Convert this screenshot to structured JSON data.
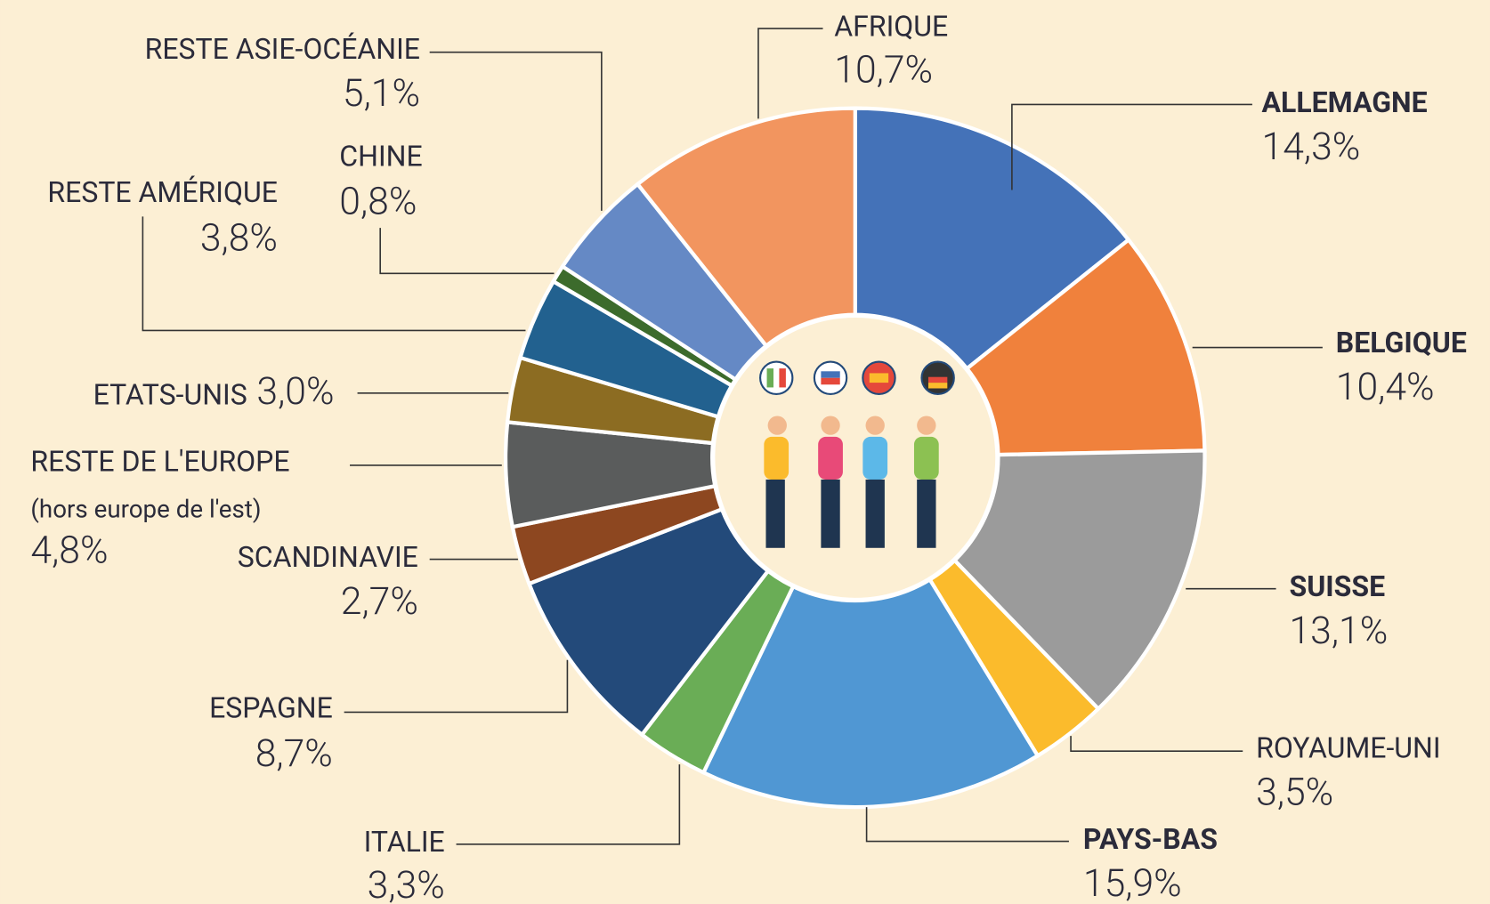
{
  "chart_data": {
    "type": "donut",
    "categories": [
      "ALLEMAGNE",
      "BELGIQUE",
      "SUISSE",
      "ROYAUME-UNI",
      "PAYS-BAS",
      "ITALIE",
      "ESPAGNE",
      "SCANDINAVIE",
      "RESTE DE L'EUROPE",
      "ETATS-UNIS",
      "RESTE AMÉRIQUE",
      "CHINE",
      "RESTE ASIE-OCÉANIE",
      "AFRIQUE"
    ],
    "values": [
      14.3,
      10.4,
      13.1,
      3.5,
      15.9,
      3.3,
      8.7,
      2.7,
      4.8,
      3.0,
      3.8,
      0.8,
      5.1,
      10.7
    ],
    "value_labels": [
      "14,3%",
      "10,4%",
      "13,1%",
      "3,5%",
      "15,9%",
      "3,3%",
      "8,7%",
      "2,7%",
      "4,8%",
      "3,0%",
      "3,8%",
      "0,8%",
      "5,1%",
      "10,7%"
    ],
    "colors": [
      "#4472b8",
      "#f0813c",
      "#9b9b9b",
      "#fbbb2c",
      "#5097d3",
      "#6aad56",
      "#234a7a",
      "#8d4720",
      "#5a5c5c",
      "#8c6c22",
      "#22618f",
      "#3c6b2c",
      "#6589c5",
      "#f2955f"
    ],
    "annotation": "(hors europe de l'est)"
  }
}
